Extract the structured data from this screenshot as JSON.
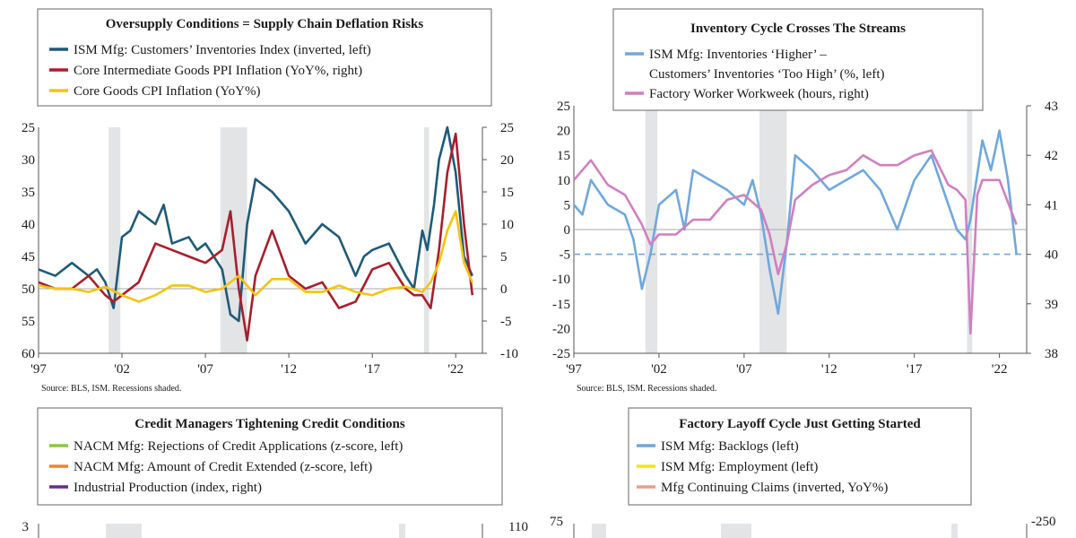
{
  "chart_data": [
    {
      "type": "line",
      "title": "Oversupply Conditions = Supply Chain Deflation Risks",
      "x_ticks": [
        "'97",
        "'02",
        "'07",
        "'12",
        "'17",
        "'22"
      ],
      "left_ticks": [
        "25",
        "30",
        "35",
        "40",
        "45",
        "50",
        "55",
        "60"
      ],
      "right_ticks": [
        "25",
        "20",
        "15",
        "10",
        "5",
        "0",
        "-5",
        "-10"
      ],
      "ylim_left": [
        60,
        25
      ],
      "ylim_right": [
        -10,
        25
      ],
      "zero_line_right": 0,
      "recessions": [
        [
          2001.2,
          2001.9
        ],
        [
          2007.9,
          2009.5
        ],
        [
          2020.1,
          2020.4
        ]
      ],
      "source": "Source: BLS, ISM. Recessions shaded.",
      "series": [
        {
          "name": "ISM Mfg: Customers’ Inventories Index (inverted, left)",
          "color": "#1f5a78",
          "axis": "left",
          "x": [
            1997,
            1998,
            1999,
            2000,
            2000.5,
            2001,
            2001.5,
            2002,
            2002.5,
            2003,
            2004,
            2004.5,
            2005,
            2006,
            2006.5,
            2007,
            2008,
            2008.5,
            2009,
            2009.5,
            2010,
            2011,
            2012,
            2013,
            2014,
            2015,
            2016,
            2016.5,
            2017,
            2018,
            2019,
            2019.5,
            2020,
            2020.3,
            2020.7,
            2021,
            2021.5,
            2022,
            2022.5,
            2023
          ],
          "values": [
            47,
            48,
            46,
            48,
            47,
            49,
            53,
            42,
            41,
            38,
            40,
            37,
            43,
            42,
            44,
            43,
            47,
            54,
            55,
            40,
            33,
            35,
            38,
            43,
            40,
            42,
            48,
            45,
            44,
            43,
            48,
            50,
            41,
            44,
            37,
            30,
            25,
            32,
            45,
            48
          ]
        },
        {
          "name": "Core Intermediate Goods PPI Inflation (YoY%, right)",
          "color": "#a81e2d",
          "axis": "right",
          "x": [
            1997,
            1998,
            1999,
            2000,
            2001,
            2001.5,
            2002,
            2003,
            2004,
            2005,
            2006,
            2007,
            2008,
            2008.5,
            2009,
            2009.5,
            2010,
            2011,
            2012,
            2013,
            2014,
            2015,
            2016,
            2017,
            2018,
            2019,
            2019.5,
            2020,
            2020.5,
            2021,
            2021.5,
            2022,
            2022.5,
            2023
          ],
          "values": [
            1,
            0,
            0,
            2,
            -1,
            -2,
            -1,
            1,
            7,
            6,
            5,
            4,
            6,
            12,
            0,
            -8,
            2,
            9,
            2,
            0,
            1,
            -3,
            -2,
            3,
            4,
            0,
            -1,
            -1,
            -3,
            6,
            18,
            24,
            10,
            -1
          ]
        },
        {
          "name": "Core Goods CPI Inflation (YoY%)",
          "color": "#f2c40f",
          "axis": "right",
          "x": [
            1997,
            1998,
            1999,
            2000,
            2001,
            2002,
            2003,
            2004,
            2005,
            2006,
            2007,
            2008,
            2009,
            2010,
            2011,
            2012,
            2013,
            2014,
            2015,
            2016,
            2017,
            2018,
            2019,
            2020,
            2020.5,
            2021,
            2021.5,
            2022,
            2022.5,
            2023
          ],
          "values": [
            0.5,
            0,
            0,
            -0.5,
            0.3,
            -1,
            -2,
            -1,
            0.5,
            0.5,
            -0.5,
            0,
            2,
            -1,
            1.5,
            1.5,
            -0.5,
            -0.5,
            0.5,
            -0.5,
            -1,
            0,
            0.3,
            -0.5,
            1,
            4,
            9,
            12,
            4,
            1
          ]
        }
      ]
    },
    {
      "type": "line",
      "title": "Inventory Cycle Crosses The Streams",
      "x_ticks": [
        "'97",
        "'02",
        "'07",
        "'12",
        "'17",
        "'22"
      ],
      "left_ticks": [
        "25",
        "20",
        "15",
        "10",
        "5",
        "0",
        "-5",
        "-10",
        "-15",
        "-20",
        "-25"
      ],
      "right_ticks": [
        "43",
        "42",
        "41",
        "40",
        "39",
        "38"
      ],
      "ylim_left": [
        -25,
        25
      ],
      "ylim_right": [
        38,
        43
      ],
      "zero_line_left": 0,
      "reference_line_left": -5,
      "recessions": [
        [
          2001.2,
          2001.9
        ],
        [
          2007.9,
          2009.5
        ],
        [
          2020.1,
          2020.4
        ]
      ],
      "source": "Source: BLS, ISM. Recessions shaded.",
      "series": [
        {
          "name": "ISM Mfg: Inventories ‘Higher’ – Customers’ Inventories ‘Too High’ (%, left)",
          "color": "#6fa8dc",
          "axis": "left",
          "x": [
            1997,
            1997.5,
            1998,
            1999,
            2000,
            2000.5,
            2001,
            2001.5,
            2002,
            2003,
            2003.5,
            2004,
            2005,
            2006,
            2007,
            2007.5,
            2008,
            2008.5,
            2009,
            2009.5,
            2010,
            2011,
            2012,
            2013,
            2014,
            2015,
            2016,
            2017,
            2018,
            2019,
            2019.5,
            2020,
            2020.3,
            2021,
            2021.5,
            2022,
            2022.5,
            2023
          ],
          "values": [
            5,
            3,
            10,
            5,
            3,
            -2,
            -12,
            -5,
            5,
            8,
            0,
            12,
            10,
            8,
            5,
            10,
            3,
            -8,
            -17,
            -3,
            15,
            12,
            8,
            10,
            12,
            8,
            0,
            10,
            15,
            5,
            0,
            -2,
            2,
            18,
            12,
            20,
            10,
            -5
          ]
        },
        {
          "name": "Factory Worker Workweek (hours, right)",
          "color": "#d07fc0",
          "axis": "right",
          "x": [
            1997,
            1998,
            1999,
            2000,
            2001,
            2001.5,
            2002,
            2003,
            2004,
            2005,
            2006,
            2007,
            2008,
            2008.5,
            2009,
            2009.5,
            2010,
            2011,
            2012,
            2013,
            2014,
            2015,
            2016,
            2017,
            2018,
            2019,
            2019.5,
            2020,
            2020.3,
            2020.7,
            2021,
            2022,
            2023
          ],
          "values": [
            41.5,
            41.9,
            41.4,
            41.2,
            40.6,
            40.2,
            40.4,
            40.4,
            40.7,
            40.7,
            41.1,
            41.2,
            40.9,
            40.4,
            39.6,
            40.2,
            41.1,
            41.4,
            41.6,
            41.7,
            42,
            41.8,
            41.8,
            42,
            42.1,
            41.4,
            41.3,
            41.1,
            38.4,
            41.2,
            41.5,
            41.5,
            40.6
          ]
        }
      ]
    },
    {
      "type": "line",
      "title": "Credit Managers Tightening Credit Conditions",
      "left_ticks": [
        "3"
      ],
      "right_ticks": [
        "110"
      ],
      "series": [
        {
          "name": "NACM Mfg: Rejections of Credit Applications (z-score, left)",
          "color": "#8cc63f",
          "axis": "left"
        },
        {
          "name": "NACM Mfg: Amount of Credit Extended (z-score, left)",
          "color": "#f0842c",
          "axis": "left"
        },
        {
          "name": "Industrial Production (index, right)",
          "color": "#6a2c91",
          "axis": "right"
        }
      ]
    },
    {
      "type": "line",
      "title": "Factory Layoff Cycle Just Getting Started",
      "left_ticks": [
        "75"
      ],
      "right_ticks": [
        "-250"
      ],
      "series": [
        {
          "name": "ISM Mfg: Backlogs (left)",
          "color": "#6fa8dc",
          "axis": "left"
        },
        {
          "name": "ISM Mfg: Employment (left)",
          "color": "#f2e21c",
          "axis": "left"
        },
        {
          "name": "Mfg Continuing Claims (inverted, YoY%)",
          "color": "#ec9d8f",
          "axis": "right"
        }
      ]
    }
  ]
}
